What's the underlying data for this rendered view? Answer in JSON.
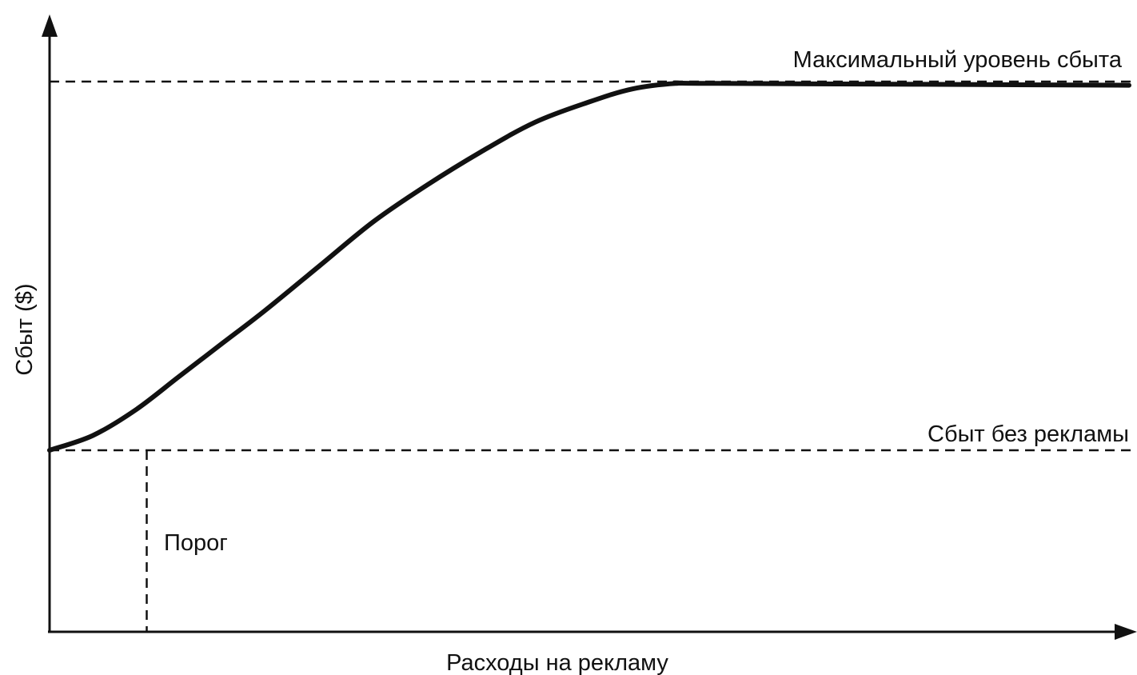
{
  "chart_data": {
    "type": "line",
    "title": "",
    "xlabel": "Расходы на рекламу",
    "ylabel": "Сбыт ($)",
    "x_ticks": "none",
    "y_ticks": "none",
    "grid": false,
    "reference_lines": {
      "max_sales": {
        "label": "Максимальный уровень сбыта",
        "y": 1.0,
        "style": "dashed"
      },
      "base_sales": {
        "label": "Сбыт без рекламы",
        "y": 0.0,
        "style": "dashed"
      },
      "threshold": {
        "label": "Порог",
        "x": 0.09,
        "style": "dashed",
        "orientation": "vertical"
      }
    },
    "series": [
      {
        "x": [
          0.0,
          0.04,
          0.08,
          0.12,
          0.16,
          0.2,
          0.25,
          0.3,
          0.35,
          0.4,
          0.45,
          0.5,
          0.54,
          0.58,
          0.62,
          1.0
        ],
        "y": [
          0.0,
          0.04,
          0.11,
          0.2,
          0.29,
          0.38,
          0.5,
          0.62,
          0.72,
          0.81,
          0.89,
          0.945,
          0.98,
          0.995,
          0.995,
          0.99
        ],
        "style": "solid, thick"
      }
    ],
    "xlim": [
      0,
      1
    ],
    "ylim": [
      -0.49,
      1.0
    ],
    "colors": {
      "curve": "#111111",
      "axes": "#111111",
      "reference": "#111111"
    }
  }
}
